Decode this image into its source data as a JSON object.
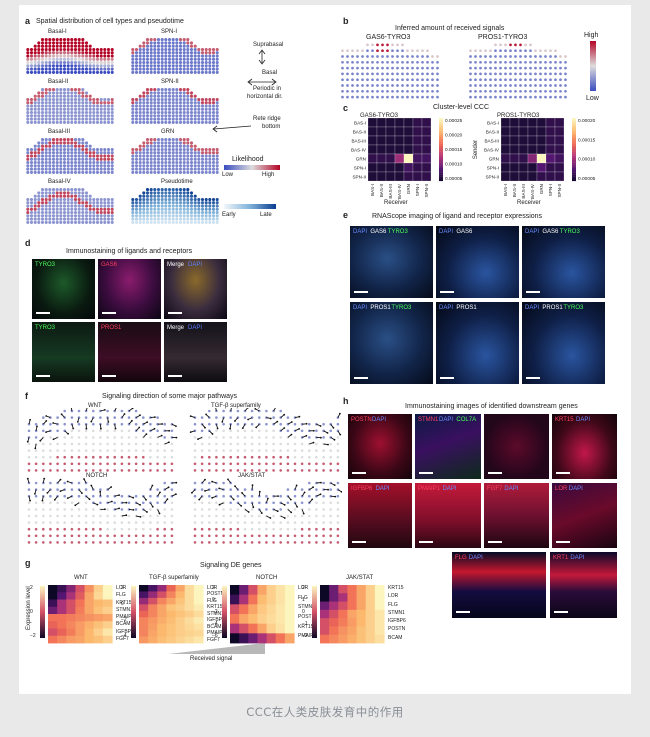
{
  "caption": "CCC在人类皮肤发育中的作用",
  "panel_a": {
    "label": "a",
    "title": "Spatial distribution of cell types and pseudotime",
    "maps": [
      "Basal-I",
      "SPN-I",
      "Basal-II",
      "SPN-II",
      "Basal-III",
      "GRN",
      "Basal-IV",
      "Pseudotime"
    ],
    "anno": {
      "suprabasal": "Suprabasal",
      "basal": "Basal",
      "periodic1": "Periodic in",
      "periodic2": "horizontal dir.",
      "rete1": "Rete ridge",
      "rete2": "bottom"
    },
    "likelihood": {
      "title": "Likelihood",
      "low": "Low",
      "high": "High"
    },
    "pseudo": {
      "early": "Early",
      "late": "Late"
    }
  },
  "panel_b": {
    "label": "b",
    "title": "Inferred amount of received signals",
    "maps": [
      "GAS6-TYRO3",
      "PROS1-TYRO3"
    ],
    "scale": {
      "high": "High",
      "low": "Low"
    }
  },
  "panel_c": {
    "label": "c",
    "title": "Cluster-level CCC",
    "heatmaps": [
      {
        "name": "GAS6-TYRO3",
        "ticks": [
          "0.00025",
          "0.00020",
          "0.00015",
          "0.00010",
          "0.00005"
        ]
      },
      {
        "name": "PROS1-TYRO3",
        "ticks": [
          "0.00020",
          "0.00015",
          "0.00010",
          "0.00005"
        ]
      }
    ],
    "clusters": [
      "BAS-I",
      "BAS-II",
      "BAS-III",
      "BAS-IV",
      "GRN",
      "SPN-I",
      "SPN-II"
    ],
    "ylabel": "Sender",
    "xlabel": "Receiver",
    "matrix1": [
      [
        0.05,
        0.05,
        0.05,
        0.05,
        0.05,
        0.1,
        0.1
      ],
      [
        0.05,
        0.05,
        0.05,
        0.05,
        0.05,
        0.1,
        0.1
      ],
      [
        0.05,
        0.05,
        0.05,
        0.05,
        0.05,
        0.1,
        0.1
      ],
      [
        0.05,
        0.05,
        0.05,
        0.05,
        0.05,
        0.1,
        0.1
      ],
      [
        0.1,
        0.1,
        0.1,
        0.35,
        1.0,
        0.15,
        0.15
      ],
      [
        0.05,
        0.05,
        0.05,
        0.05,
        0.15,
        0.1,
        0.1
      ],
      [
        0.05,
        0.05,
        0.05,
        0.05,
        0.1,
        0.1,
        0.1
      ]
    ],
    "matrix2": [
      [
        0.05,
        0.05,
        0.05,
        0.05,
        0.05,
        0.1,
        0.1
      ],
      [
        0.05,
        0.05,
        0.05,
        0.05,
        0.05,
        0.1,
        0.1
      ],
      [
        0.05,
        0.05,
        0.05,
        0.05,
        0.05,
        0.1,
        0.1
      ],
      [
        0.05,
        0.05,
        0.05,
        0.05,
        0.05,
        0.1,
        0.1
      ],
      [
        0.1,
        0.1,
        0.1,
        0.3,
        1.0,
        0.2,
        0.15
      ],
      [
        0.05,
        0.05,
        0.05,
        0.05,
        0.2,
        0.1,
        0.1
      ],
      [
        0.05,
        0.05,
        0.05,
        0.05,
        0.1,
        0.1,
        0.1
      ]
    ]
  },
  "panel_d": {
    "label": "d",
    "title": "Immunostaining of ligands and receptors",
    "row1": [
      "TYRO3",
      "GAS6",
      "Merge"
    ],
    "row2": [
      "TYRO3",
      "PROS1",
      "Merge"
    ],
    "dapi": "DAPI"
  },
  "panel_e": {
    "label": "e",
    "title": "RNAScope imaging of ligand and receptor expressions",
    "row1": [
      [
        "DAPI",
        "GAS6",
        "TYRO3"
      ],
      [
        "DAPI",
        "GAS6",
        ""
      ],
      [
        "DAPI",
        "GAS6",
        "TYRO3"
      ]
    ],
    "row2": [
      [
        "DAPI",
        "PROS1",
        "TYRO3"
      ],
      [
        "DAPI",
        "PROS1",
        ""
      ],
      [
        "DAPI",
        "PROS1",
        "TYRO3"
      ]
    ]
  },
  "panel_f": {
    "label": "f",
    "title": "Signaling direction of some major pathways",
    "maps": [
      "WNT",
      "TGF-β superfamily",
      "NOTCH",
      "JAK/STAT"
    ]
  },
  "panel_g": {
    "label": "g",
    "title": "Signaling DE genes",
    "ylabel": "Expression level",
    "xlabel": "Received signal",
    "heatmaps": [
      {
        "name": "WNT",
        "genes": [
          "LOR",
          "FLG",
          "KRT15",
          "STMN1",
          "PMAIP1",
          "BCAM",
          "IGFBP6",
          "FGF7"
        ],
        "ticks": [
          "2",
          "0",
          "−2"
        ],
        "data": [
          [
            -2,
            -1.5,
            -0.8,
            0,
            0.8,
            1.5,
            2
          ],
          [
            -2,
            -1.2,
            -0.5,
            0.2,
            1,
            1.6,
            2
          ],
          [
            -1.5,
            -0.5,
            0,
            0.5,
            1,
            1.2,
            1.3
          ],
          [
            -1,
            -0.5,
            0,
            0.6,
            1,
            1.3,
            1.5
          ],
          [
            0.5,
            0.5,
            0.6,
            0.7,
            0.8,
            0.9,
            1
          ],
          [
            0.3,
            0.5,
            0.7,
            0.9,
            1.1,
            1.3,
            1.5
          ],
          [
            0,
            0.3,
            0.6,
            0.9,
            1.2,
            1.5,
            1.8
          ],
          [
            0.5,
            0.7,
            0.9,
            1,
            1.2,
            1.3,
            1.5
          ]
        ]
      },
      {
        "name": "TGF-β superfamily",
        "genes": [
          "LOR",
          "POSTN",
          "FLG",
          "KRT15",
          "STMN1",
          "IGFBP6",
          "BCAM",
          "PMAIP1",
          "FGF7"
        ],
        "ticks": [
          "2",
          "0",
          "−2",
          "−4"
        ],
        "data": [
          [
            -4,
            -3,
            -2,
            -0.5,
            0.5,
            1.5,
            2
          ],
          [
            -3,
            -2,
            -1,
            0,
            0.8,
            1.5,
            2
          ],
          [
            -2,
            -1,
            0,
            0.5,
            1,
            1.5,
            2
          ],
          [
            -1,
            0,
            0.5,
            1,
            1.2,
            1.5,
            1.8
          ],
          [
            -0.5,
            0,
            0.5,
            0.8,
            1,
            1.2,
            1.5
          ],
          [
            0,
            0.3,
            0.6,
            0.9,
            1.2,
            1.5,
            1.8
          ],
          [
            0,
            0.4,
            0.8,
            1,
            1.2,
            1.4,
            1.6
          ],
          [
            0,
            0.5,
            0.8,
            1,
            1.2,
            1.3,
            1.4
          ],
          [
            0.3,
            0.6,
            0.9,
            1.1,
            1.3,
            1.5,
            1.7
          ]
        ]
      },
      {
        "name": "NOTCH",
        "genes": [
          "LOR",
          "FLG",
          "STMN1",
          "POSTN",
          "KRT15",
          "PMAIP1"
        ],
        "ticks": [
          "2",
          "0",
          "−2",
          "−4",
          "−6"
        ],
        "data": [
          [
            -6,
            -4,
            -2,
            0,
            1,
            1.5,
            2
          ],
          [
            -5,
            -3,
            -1,
            0.5,
            1,
            1.5,
            2
          ],
          [
            -2,
            -1,
            0,
            0.8,
            1.2,
            1.6,
            2
          ],
          [
            -1,
            0,
            0.5,
            1,
            1.3,
            1.6,
            2
          ],
          [
            -3,
            -2,
            -1,
            0,
            1,
            1.5,
            2
          ],
          [
            -6,
            -5,
            -4,
            -3,
            -2,
            -1,
            0
          ]
        ]
      },
      {
        "name": "JAK/STAT",
        "genes": [
          "KRT15",
          "LOR",
          "FLG",
          "STMN1",
          "IGFBP6",
          "POSTN",
          "BCAM"
        ],
        "ticks": [
          "2",
          "1",
          "0",
          "−1",
          "−2"
        ],
        "data": [
          [
            -2,
            -1,
            0,
            0.5,
            1,
            1.5,
            2
          ],
          [
            -2,
            -1,
            -0.5,
            0.5,
            1,
            1.5,
            2
          ],
          [
            -1,
            -0.5,
            0,
            0.5,
            1,
            1.5,
            2
          ],
          [
            -0.5,
            0,
            0.5,
            1,
            1.2,
            1.5,
            1.8
          ],
          [
            0,
            0.3,
            0.6,
            0.9,
            1.2,
            1.5,
            1.8
          ],
          [
            0,
            0.5,
            0.8,
            1,
            1.3,
            1.5,
            1.8
          ],
          [
            0.5,
            0.7,
            0.9,
            1.1,
            1.3,
            1.5,
            1.7
          ]
        ]
      }
    ]
  },
  "panel_h": {
    "label": "h",
    "title": "Immunostaining images of identified downstream genes",
    "tiles": [
      [
        "POSTN",
        "DAPI",
        ""
      ],
      [
        "STMN1",
        "DAPI",
        "COL7A"
      ],
      [
        "",
        "",
        ""
      ],
      [
        "KRT15",
        "DAPI",
        ""
      ],
      [
        "IGFBP6",
        "DAPI",
        ""
      ],
      [
        "PMAIP1",
        "DAPI",
        ""
      ],
      [
        "FGF7",
        "DAPI",
        ""
      ],
      [
        "LOR",
        "DAPI",
        ""
      ],
      [
        "FLG",
        "DAPI",
        ""
      ],
      [
        "KRT1",
        "DAPI",
        ""
      ]
    ]
  }
}
